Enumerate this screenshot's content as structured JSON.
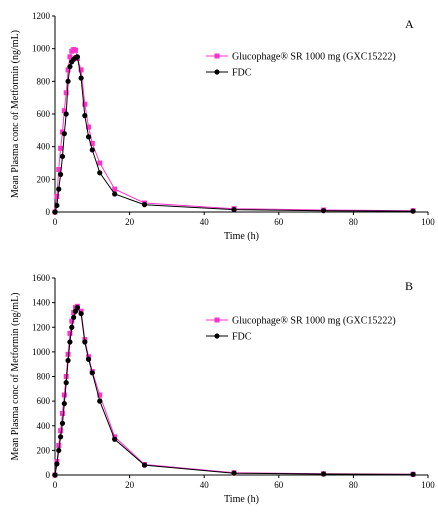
{
  "chart_data": [
    {
      "type": "line",
      "panel_label": "A",
      "xlabel": "Time (h)",
      "ylabel": "Mean Plasma conc of Metformin (ng/mL)",
      "xlim": [
        0,
        100
      ],
      "ylim": [
        0,
        1200
      ],
      "xticks": [
        "0",
        "20",
        "40",
        "60",
        "80",
        "100"
      ],
      "yticks": [
        "0",
        "200",
        "400",
        "600",
        "800",
        "1000",
        "1200"
      ],
      "legend_position": "upper-right",
      "grid": false,
      "series": [
        {
          "name": "Glucophage® SR 1000 mg (GXC15222)",
          "color": "#ff33cc",
          "marker": "square",
          "x": [
            0,
            0.5,
            1,
            1.5,
            2,
            2.5,
            3,
            3.5,
            4,
            4.5,
            5,
            5.5,
            6,
            7,
            8,
            9,
            10,
            12,
            16,
            24,
            48,
            72,
            96
          ],
          "y": [
            0,
            95,
            260,
            390,
            490,
            620,
            730,
            870,
            950,
            985,
            995,
            990,
            940,
            870,
            660,
            520,
            420,
            300,
            140,
            55,
            20,
            12,
            8
          ]
        },
        {
          "name": "FDC",
          "color": "#000000",
          "marker": "circle",
          "x": [
            0,
            0.5,
            1,
            1.5,
            2,
            2.5,
            3,
            3.5,
            4,
            4.5,
            5,
            5.5,
            6,
            7,
            8,
            9,
            10,
            12,
            16,
            24,
            48,
            72,
            96
          ],
          "y": [
            0,
            40,
            140,
            230,
            340,
            480,
            600,
            800,
            890,
            920,
            935,
            945,
            950,
            820,
            590,
            460,
            380,
            240,
            110,
            45,
            15,
            8,
            5
          ]
        }
      ]
    },
    {
      "type": "line",
      "panel_label": "B",
      "xlabel": "Time (h)",
      "ylabel": "Mean Plasma conc of Metformin (ng/mL)",
      "xlim": [
        0,
        100
      ],
      "ylim": [
        0,
        1600
      ],
      "xticks": [
        "0",
        "20",
        "40",
        "60",
        "80",
        "100"
      ],
      "yticks": [
        "0",
        "200",
        "400",
        "600",
        "800",
        "1000",
        "1200",
        "1400",
        "1600"
      ],
      "legend_position": "upper-right",
      "grid": false,
      "series": [
        {
          "name": "Glucophage® SR 1000 mg (GXC15222)",
          "color": "#ff33cc",
          "marker": "square",
          "x": [
            0,
            0.5,
            1,
            1.5,
            2,
            2.5,
            3,
            3.5,
            4,
            4.5,
            5,
            5.5,
            6,
            7,
            8,
            9,
            10,
            12,
            16,
            24,
            48,
            72,
            96
          ],
          "y": [
            0,
            110,
            240,
            360,
            500,
            650,
            800,
            980,
            1150,
            1250,
            1320,
            1360,
            1370,
            1330,
            1100,
            960,
            840,
            650,
            310,
            85,
            18,
            10,
            6
          ]
        },
        {
          "name": "FDC",
          "color": "#000000",
          "marker": "circle",
          "x": [
            0,
            0.5,
            1,
            1.5,
            2,
            2.5,
            3,
            3.5,
            4,
            4.5,
            5,
            5.5,
            6,
            7,
            8,
            9,
            10,
            12,
            16,
            24,
            48,
            72,
            96
          ],
          "y": [
            0,
            90,
            200,
            310,
            420,
            580,
            750,
            930,
            1080,
            1200,
            1280,
            1330,
            1360,
            1310,
            1080,
            940,
            830,
            600,
            290,
            80,
            15,
            8,
            5
          ]
        }
      ]
    }
  ]
}
